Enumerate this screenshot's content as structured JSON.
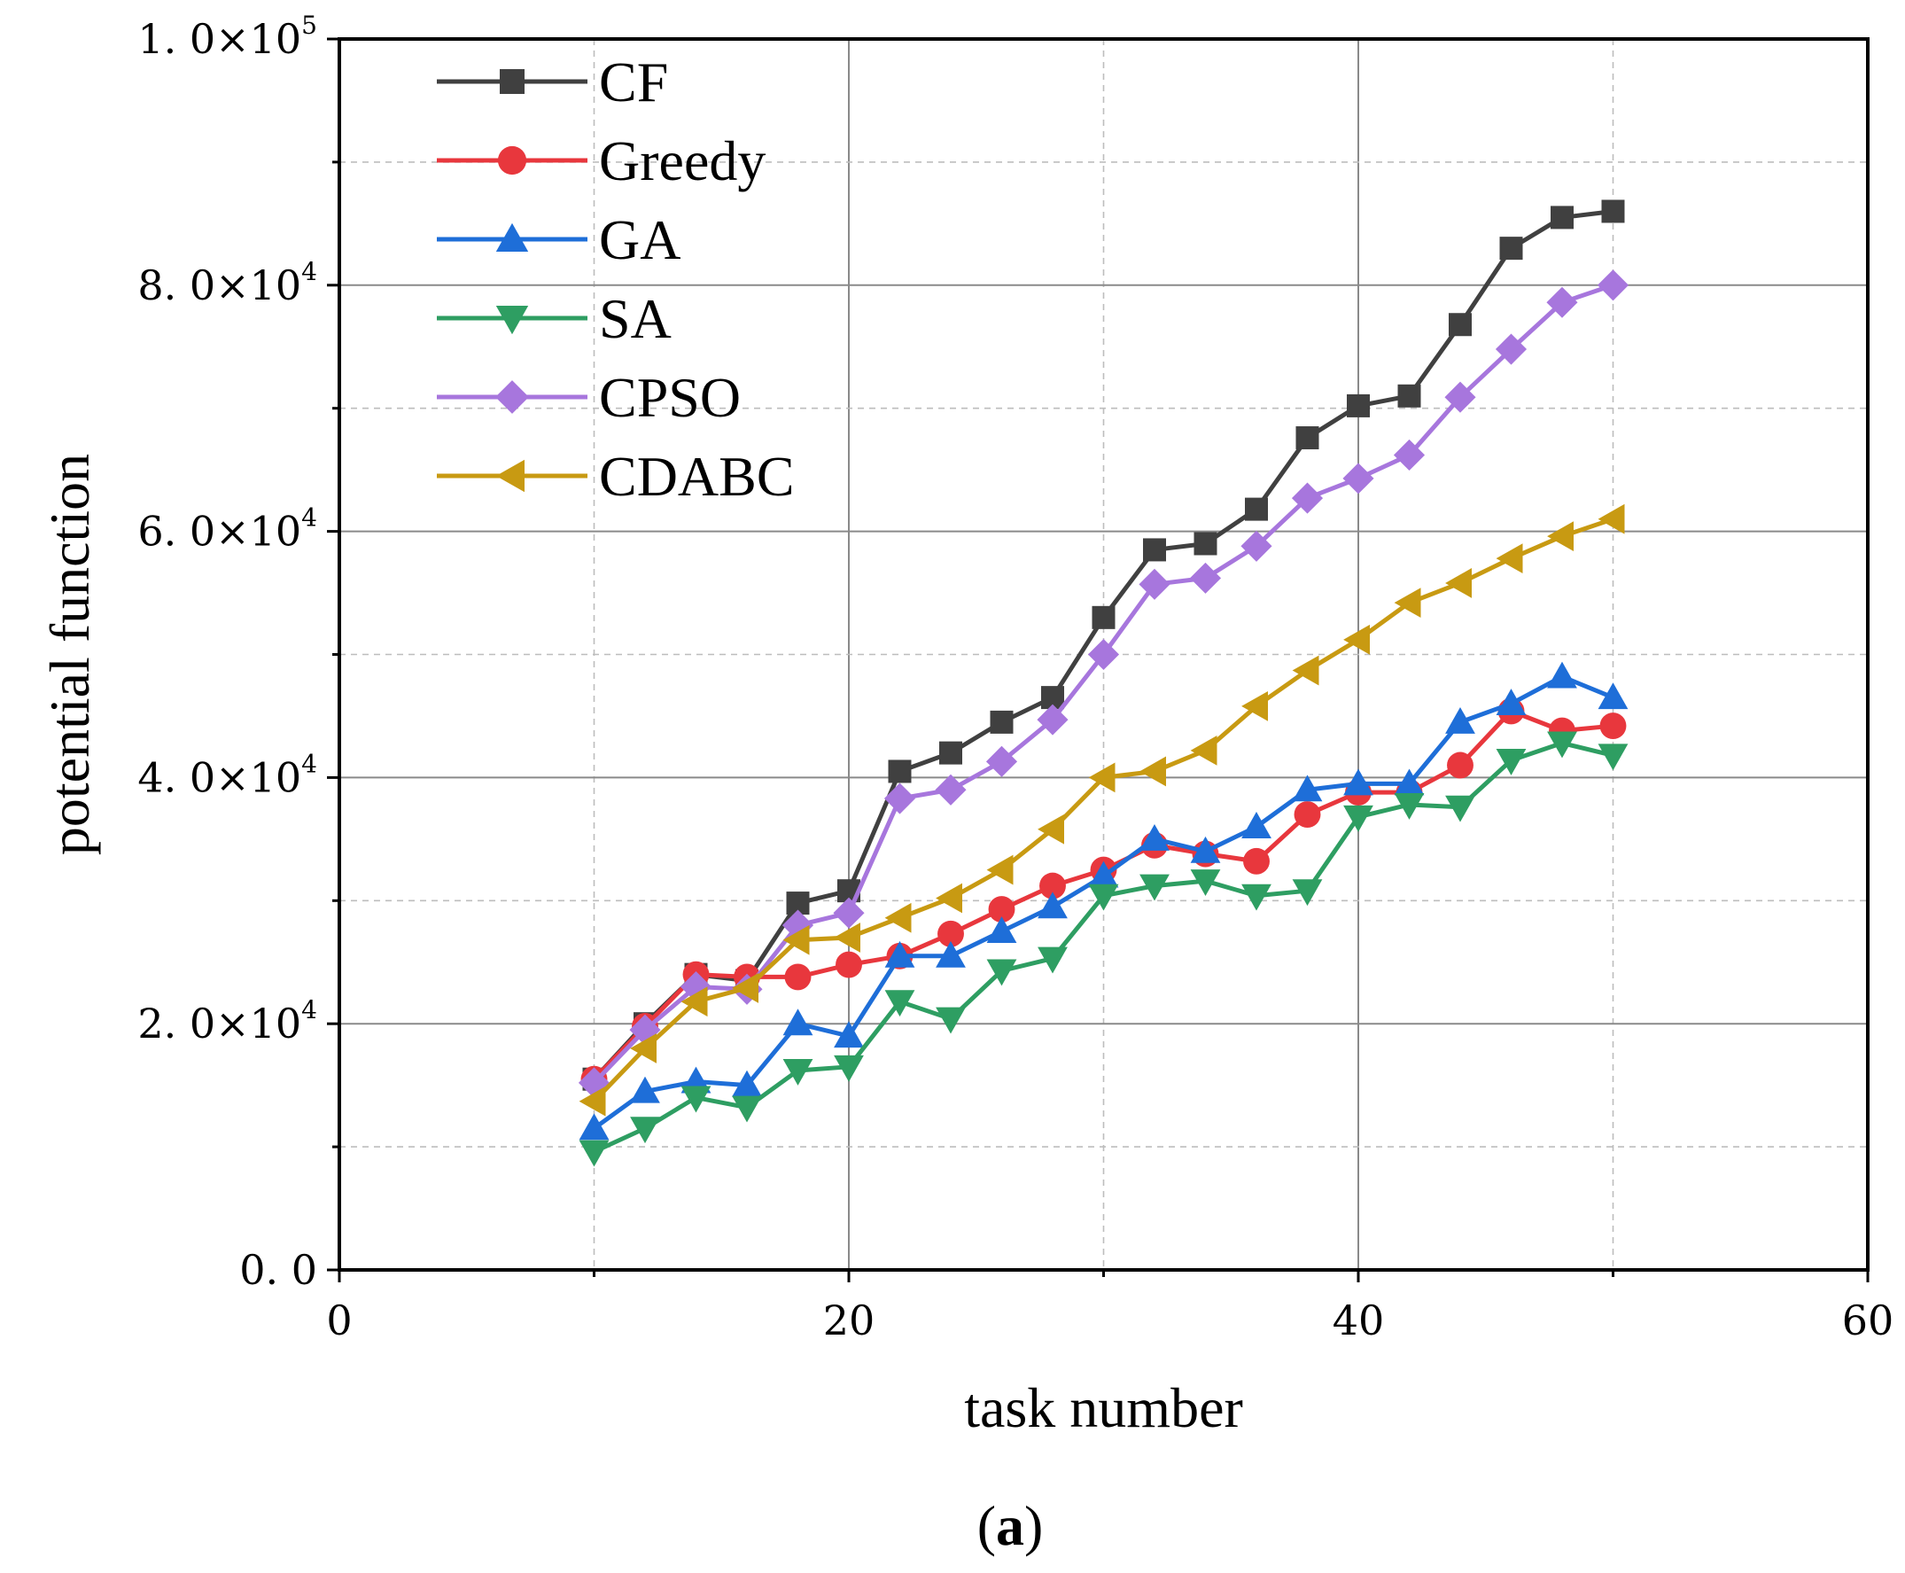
{
  "chart_data": {
    "type": "line",
    "caption": {
      "open": "(",
      "letter": "a",
      "close": ")"
    },
    "xlabel": "task number",
    "ylabel": "potential function",
    "xlim": [
      0,
      60
    ],
    "ylim": [
      0,
      100000
    ],
    "x_ticks": [
      {
        "value": 0,
        "label": "0"
      },
      {
        "value": 20,
        "label": "20"
      },
      {
        "value": 40,
        "label": "40"
      },
      {
        "value": 60,
        "label": "60"
      }
    ],
    "y_ticks": [
      {
        "value": 0,
        "mant": "0. 0",
        "exp": ""
      },
      {
        "value": 20000,
        "mant": "2. 0×10",
        "exp": "4"
      },
      {
        "value": 40000,
        "mant": "4. 0×10",
        "exp": "4"
      },
      {
        "value": 60000,
        "mant": "6. 0×10",
        "exp": "4"
      },
      {
        "value": 80000,
        "mant": "8. 0×10",
        "exp": "4"
      },
      {
        "value": 100000,
        "mant": "1. 0×10",
        "exp": "5"
      }
    ],
    "y_minor_ticks": [
      10000,
      30000,
      50000,
      70000,
      90000
    ],
    "x": [
      10,
      12,
      14,
      16,
      18,
      20,
      22,
      24,
      26,
      28,
      30,
      32,
      34,
      36,
      38,
      40,
      42,
      44,
      46,
      48,
      50
    ],
    "series": [
      {
        "name": "CF",
        "color": "#404040",
        "marker": "square",
        "values": [
          15500,
          20000,
          24000,
          23500,
          29800,
          30800,
          40500,
          42000,
          44500,
          46500,
          53000,
          58500,
          59000,
          61800,
          67600,
          70200,
          71000,
          76800,
          83000,
          85500,
          86000
        ]
      },
      {
        "name": "Greedy",
        "color": "#e8373d",
        "marker": "circle",
        "values": [
          15500,
          19800,
          24000,
          23800,
          23800,
          24800,
          25500,
          27300,
          29300,
          31200,
          32500,
          34500,
          33800,
          33200,
          37000,
          38800,
          38800,
          41000,
          45400,
          43800,
          44200
        ]
      },
      {
        "name": "GA",
        "color": "#1e6ed8",
        "marker": "triangle-up",
        "values": [
          11500,
          14500,
          15300,
          15000,
          20000,
          19000,
          25500,
          25500,
          27500,
          29500,
          32000,
          35000,
          34000,
          36000,
          39000,
          39500,
          39500,
          44500,
          46000,
          48200,
          46500
        ]
      },
      {
        "name": "SA",
        "color": "#2e9e62",
        "marker": "triangle-down",
        "values": [
          9600,
          11500,
          14000,
          13200,
          16200,
          16500,
          21800,
          20400,
          24300,
          25300,
          30400,
          31200,
          31600,
          30400,
          30800,
          36800,
          37800,
          37600,
          41400,
          42800,
          41800
        ]
      },
      {
        "name": "CPSO",
        "color": "#a776dd",
        "marker": "diamond",
        "values": [
          15200,
          19500,
          23000,
          22800,
          28000,
          29000,
          38300,
          39000,
          41300,
          44700,
          50000,
          55700,
          56200,
          58800,
          62700,
          64300,
          66200,
          70900,
          74800,
          78600,
          80000
        ]
      },
      {
        "name": "CDABC",
        "color": "#c89a12",
        "marker": "triangle-left",
        "values": [
          13700,
          18000,
          21800,
          22900,
          26800,
          27000,
          28600,
          30200,
          32500,
          35800,
          40000,
          40500,
          42200,
          45800,
          48700,
          51200,
          54200,
          55800,
          57800,
          59600,
          61000
        ]
      }
    ]
  }
}
